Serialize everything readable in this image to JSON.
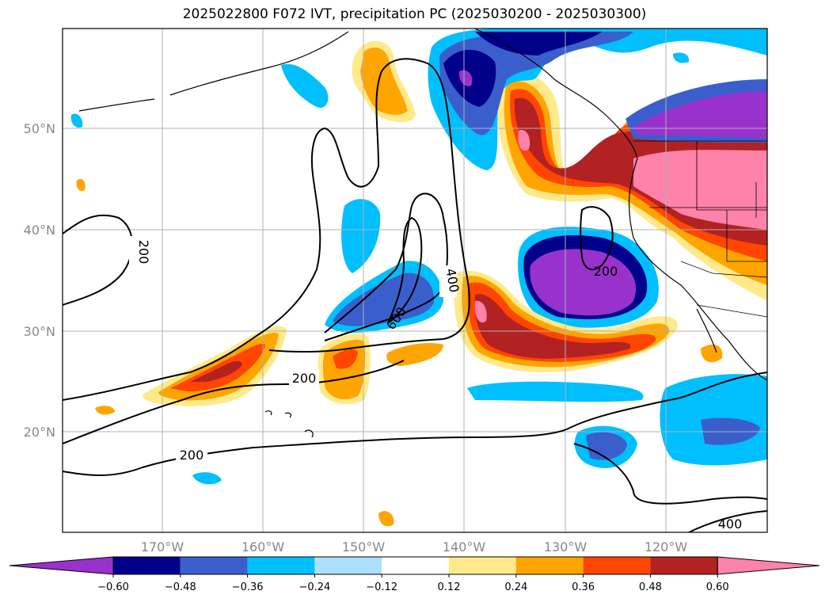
{
  "title": "2025022800 F072 IVT, precipitation PC (2025030200 - 2025030300)",
  "lat_labels": [
    "50°N",
    "40°N",
    "30°N",
    "20°N"
  ],
  "lon_labels": [
    "170°W",
    "160°W",
    "150°W",
    "140°W",
    "130°W",
    "120°W"
  ],
  "contour_labels": [
    "200",
    "200",
    "200",
    "200",
    "400",
    "400",
    "600"
  ],
  "colorbar": {
    "colors": [
      "#9932CC",
      "#00008B",
      "#3A5FCD",
      "#00BFFF",
      "#ADDFFF",
      "#FFFFFF",
      "#FFE98A",
      "#FFA500",
      "#FF4500",
      "#B22222",
      "#FF82AB"
    ],
    "tick_labels": [
      "−0.60",
      "−0.48",
      "−0.36",
      "−0.24",
      "−0.12",
      "0.12",
      "0.24",
      "0.36",
      "0.48",
      "0.60"
    ]
  }
}
